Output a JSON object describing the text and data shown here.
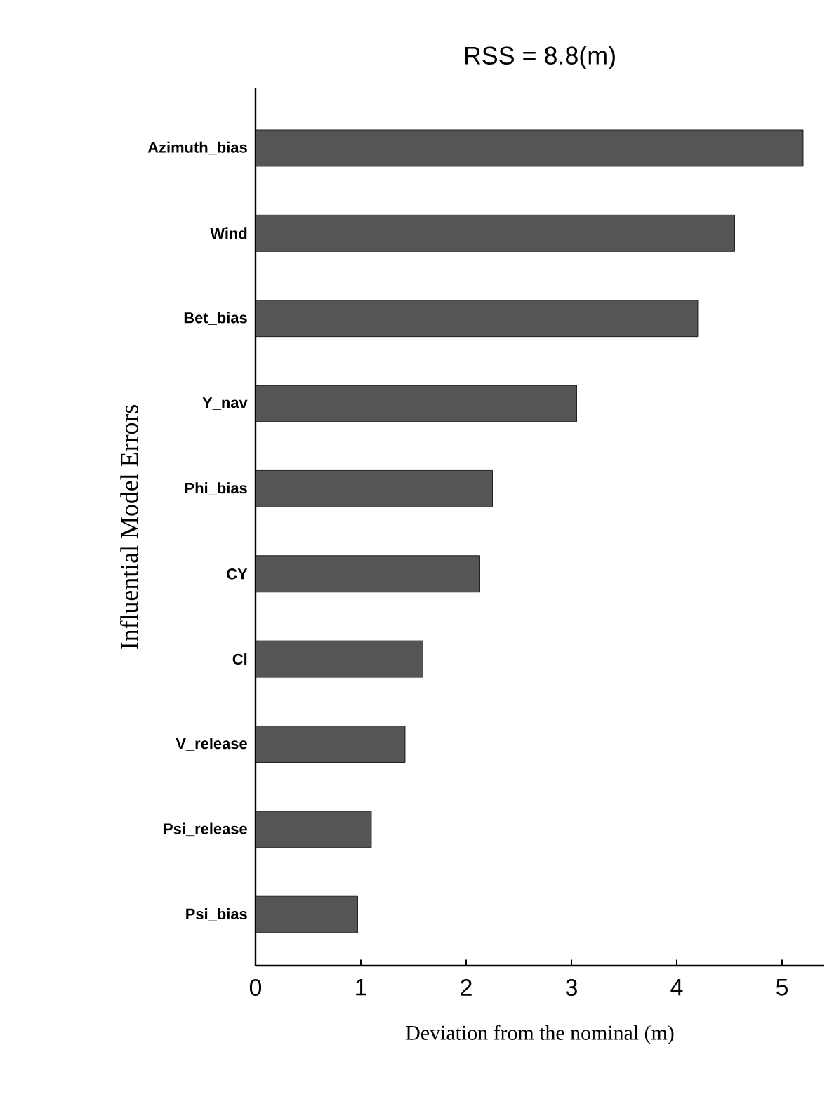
{
  "chart_data": {
    "type": "bar",
    "orientation": "horizontal",
    "title": "RSS = 8.8(m)",
    "xlabel": "Deviation from the nominal (m)",
    "ylabel": "Influential Model Errors",
    "categories": [
      "Azimuth_bias",
      "Wind",
      "Bet_bias",
      "Y_nav",
      "Phi_bias",
      "CY",
      "Cl",
      "V_release",
      "Psi_release",
      "Psi_bias"
    ],
    "values": [
      5.2,
      4.55,
      4.2,
      3.05,
      2.25,
      2.13,
      1.59,
      1.42,
      1.1,
      0.97
    ],
    "color": "#555555",
    "xlim": [
      0,
      5.4
    ],
    "xticks": [
      0,
      1,
      2,
      3,
      4,
      5
    ],
    "grid": false
  }
}
